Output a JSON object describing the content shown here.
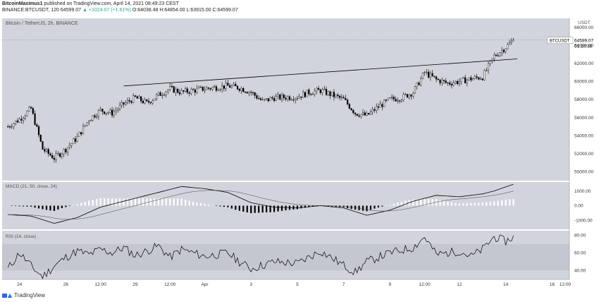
{
  "header": {
    "publisher": "BitcoinMaximus1",
    "published_text": "published on TradingView.com, April 14, 2021 08:49:23 CEST",
    "symbol_line": "BINANCE:BTCUSDT, 120",
    "last": "64599.07",
    "change": "+1024.07 (+1.61%)",
    "o": "O:64038.48",
    "h": "H:64854.00",
    "l": "L:63915.00",
    "c": "C:64599.07"
  },
  "main_pane": {
    "title": "Bitcoin / TetherUS, 2h, BINANCE",
    "currency": "USDT",
    "price_tag_symbol": "BTCUSDT",
    "price_tag_value": "64599.07",
    "price_tag_countdown": "01:10:38",
    "y_ticks": [
      "66000.00",
      "64000.00",
      "62000.00",
      "60000.00",
      "58000.00",
      "56000.00",
      "54000.00",
      "52000.00",
      "50000.00"
    ]
  },
  "macd_pane": {
    "title": "MACD (21, 50, close, 24)",
    "y_ticks": [
      "1000.00",
      "0.00",
      "-1000.00"
    ]
  },
  "rsi_pane": {
    "title": "RSI (14, close)",
    "y_ticks": [
      "80.00",
      "60.00",
      "40.00"
    ]
  },
  "x_ticks": [
    "24",
    "26",
    "12:00",
    "29",
    "12:00",
    "Apr",
    "3",
    "5",
    "7",
    "9",
    "12:00",
    "12",
    "14",
    "16",
    "12:00"
  ],
  "footer": {
    "brand": "TradingView"
  },
  "colors": {
    "pane_bg": "#d1d4dc",
    "candle": "#000000",
    "rsi_band": "#c4c7d0",
    "macd_hist_pos": "#ffffff",
    "macd_hist_neg": "#000000"
  },
  "chart_data": [
    {
      "type": "candlestick",
      "title": "Bitcoin / TetherUS, 2h, BINANCE",
      "ylim": [
        49000,
        67000
      ],
      "ylabel": "USDT",
      "trendline": [
        {
          "x": "Mar 28 12:00",
          "y": 59500
        },
        {
          "x": "Apr 14 12:00",
          "y": 62500
        }
      ],
      "close_path": [
        {
          "x": "Mar 23 12:00",
          "y": 55000
        },
        {
          "x": "Mar 24",
          "y": 55800
        },
        {
          "x": "Mar 24 12:00",
          "y": 57000
        },
        {
          "x": "Mar 25",
          "y": 52500
        },
        {
          "x": "Mar 25 12:00",
          "y": 51500
        },
        {
          "x": "Mar 26",
          "y": 52500
        },
        {
          "x": "Mar 26 12:00",
          "y": 53800
        },
        {
          "x": "Mar 27",
          "y": 55800
        },
        {
          "x": "Mar 27 12:00",
          "y": 56800
        },
        {
          "x": "Mar 28",
          "y": 56500
        },
        {
          "x": "Mar 28 12:00",
          "y": 57500
        },
        {
          "x": "Mar 29",
          "y": 58200
        },
        {
          "x": "Mar 29 12:00",
          "y": 57600
        },
        {
          "x": "Mar 30",
          "y": 58500
        },
        {
          "x": "Mar 30 12:00",
          "y": 59200
        },
        {
          "x": "Mar 31",
          "y": 58800
        },
        {
          "x": "Apr 1",
          "y": 59200
        },
        {
          "x": "Apr 2",
          "y": 59500
        },
        {
          "x": "Apr 2 12:00",
          "y": 59300
        },
        {
          "x": "Apr 3",
          "y": 58800
        },
        {
          "x": "Apr 3 12:00",
          "y": 57800
        },
        {
          "x": "Apr 4",
          "y": 58200
        },
        {
          "x": "Apr 5",
          "y": 58300
        },
        {
          "x": "Apr 5 12:00",
          "y": 58800
        },
        {
          "x": "Apr 6",
          "y": 59000
        },
        {
          "x": "Apr 6 12:00",
          "y": 58500
        },
        {
          "x": "Apr 7",
          "y": 58000
        },
        {
          "x": "Apr 7 12:00",
          "y": 56500
        },
        {
          "x": "Apr 8",
          "y": 56200
        },
        {
          "x": "Apr 8 12:00",
          "y": 57200
        },
        {
          "x": "Apr 9",
          "y": 58000
        },
        {
          "x": "Apr 9 12:00",
          "y": 58200
        },
        {
          "x": "Apr 10",
          "y": 58800
        },
        {
          "x": "Apr 10 12:00",
          "y": 61000
        },
        {
          "x": "Apr 11",
          "y": 60200
        },
        {
          "x": "Apr 11 12:00",
          "y": 59800
        },
        {
          "x": "Apr 12",
          "y": 60000
        },
        {
          "x": "Apr 12 12:00",
          "y": 60300
        },
        {
          "x": "Apr 13",
          "y": 60500
        },
        {
          "x": "Apr 13 12:00",
          "y": 62800
        },
        {
          "x": "Apr 14",
          "y": 63800
        },
        {
          "x": "Apr 14 08:00",
          "y": 64599.07
        }
      ]
    },
    {
      "type": "bar",
      "title": "MACD (21, 50, close, 24)",
      "ylim": [
        -1600,
        1600
      ],
      "macd_line": [
        {
          "x": "Mar 23 12:00",
          "y": -600
        },
        {
          "x": "Mar 24 12:00",
          "y": -700
        },
        {
          "x": "Mar 25 12:00",
          "y": -1200
        },
        {
          "x": "Mar 26 12:00",
          "y": -800
        },
        {
          "x": "Mar 27 12:00",
          "y": -100
        },
        {
          "x": "Mar 28 12:00",
          "y": 300
        },
        {
          "x": "Mar 29 12:00",
          "y": 700
        },
        {
          "x": "Mar 30 12:00",
          "y": 1100
        },
        {
          "x": "Mar 31",
          "y": 1300
        },
        {
          "x": "Apr 1",
          "y": 1150
        },
        {
          "x": "Apr 2",
          "y": 900
        },
        {
          "x": "Apr 3",
          "y": 200
        },
        {
          "x": "Apr 4",
          "y": -100
        },
        {
          "x": "Apr 5",
          "y": -150
        },
        {
          "x": "Apr 6",
          "y": 0
        },
        {
          "x": "Apr 7",
          "y": -150
        },
        {
          "x": "Apr 8",
          "y": -650
        },
        {
          "x": "Apr 9",
          "y": -300
        },
        {
          "x": "Apr 10",
          "y": 300
        },
        {
          "x": "Apr 11",
          "y": 700
        },
        {
          "x": "Apr 12",
          "y": 600
        },
        {
          "x": "Apr 13",
          "y": 800
        },
        {
          "x": "Apr 13 12:00",
          "y": 1000
        },
        {
          "x": "Apr 14 08:00",
          "y": 1450
        }
      ]
    },
    {
      "type": "line",
      "title": "RSI (14, close)",
      "ylim": [
        30,
        85
      ],
      "band": [
        40,
        70
      ],
      "values": [
        {
          "x": "Mar 23 12:00",
          "y": 42
        },
        {
          "x": "Mar 24",
          "y": 60
        },
        {
          "x": "Mar 24 12:00",
          "y": 45
        },
        {
          "x": "Mar 25",
          "y": 33
        },
        {
          "x": "Mar 25 12:00",
          "y": 45
        },
        {
          "x": "Mar 26",
          "y": 55
        },
        {
          "x": "Mar 26 12:00",
          "y": 62
        },
        {
          "x": "Mar 27",
          "y": 58
        },
        {
          "x": "Mar 27 12:00",
          "y": 64
        },
        {
          "x": "Mar 28",
          "y": 60
        },
        {
          "x": "Mar 28 12:00",
          "y": 66
        },
        {
          "x": "Mar 29",
          "y": 57
        },
        {
          "x": "Mar 29 12:00",
          "y": 62
        },
        {
          "x": "Mar 30",
          "y": 68
        },
        {
          "x": "Mar 30 12:00",
          "y": 55
        },
        {
          "x": "Mar 31",
          "y": 64
        },
        {
          "x": "Apr 1",
          "y": 56
        },
        {
          "x": "Apr 2",
          "y": 60
        },
        {
          "x": "Apr 2 12:00",
          "y": 50
        },
        {
          "x": "Apr 3",
          "y": 42
        },
        {
          "x": "Apr 4",
          "y": 50
        },
        {
          "x": "Apr 5",
          "y": 48
        },
        {
          "x": "Apr 6",
          "y": 62
        },
        {
          "x": "Apr 7",
          "y": 46
        },
        {
          "x": "Apr 7 12:00",
          "y": 38
        },
        {
          "x": "Apr 8",
          "y": 50
        },
        {
          "x": "Apr 9",
          "y": 60
        },
        {
          "x": "Apr 10",
          "y": 66
        },
        {
          "x": "Apr 10 12:00",
          "y": 78
        },
        {
          "x": "Apr 11",
          "y": 58
        },
        {
          "x": "Apr 12",
          "y": 62
        },
        {
          "x": "Apr 12 12:00",
          "y": 56
        },
        {
          "x": "Apr 13",
          "y": 64
        },
        {
          "x": "Apr 13 12:00",
          "y": 78
        },
        {
          "x": "Apr 14",
          "y": 73
        },
        {
          "x": "Apr 14 08:00",
          "y": 78
        }
      ]
    }
  ]
}
